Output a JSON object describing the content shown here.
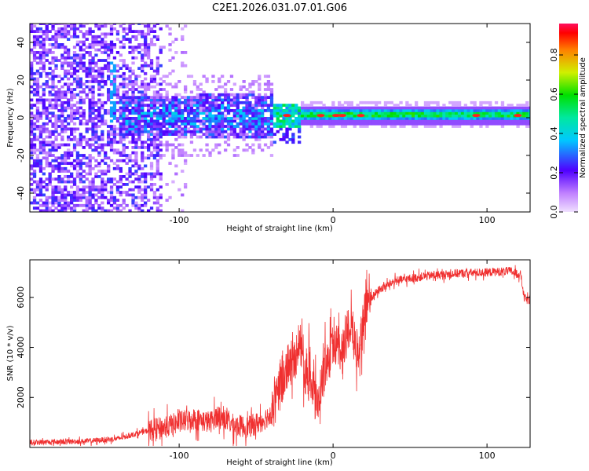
{
  "title": "C2E1.2026.031.07.01.G06",
  "chart_data": [
    {
      "type": "heatmap",
      "name": "spectrogram",
      "xlabel": "Height of straight line (km)",
      "ylabel": "Frequency (Hz)",
      "xlim": [
        -197,
        128
      ],
      "ylim": [
        -50,
        50
      ],
      "xticks": [
        -100,
        0,
        100
      ],
      "yticks": [
        -40,
        -20,
        0,
        20,
        40
      ],
      "colorbar": {
        "label": "Normalized spectral amplitude",
        "range": [
          0,
          0.96
        ],
        "ticks": [
          0.0,
          0.2,
          0.4,
          0.6,
          0.8
        ]
      },
      "regions": [
        {
          "x_range": [
            -197,
            -112
          ],
          "freq_range": [
            -50,
            50
          ],
          "amplitude": "0.05-0.25",
          "description": "broad noise"
        },
        {
          "x_range": [
            -140,
            -40
          ],
          "freq_range": [
            -12,
            14
          ],
          "amplitude": "0.2-0.5",
          "description": "diffuse signal"
        },
        {
          "x_range": [
            -40,
            128
          ],
          "freq_range": [
            -1,
            4
          ],
          "amplitude": "0.4-0.96",
          "description": "narrow tone near 1 Hz"
        }
      ],
      "hotspots_x": [
        -30,
        -8,
        2,
        6,
        18,
        93,
        120
      ]
    },
    {
      "type": "line",
      "name": "snr",
      "xlabel": "Height of straight line (km)",
      "ylabel": "SNR (10 * v/v)",
      "xlim": [
        -197,
        128
      ],
      "ylim": [
        0,
        7500
      ],
      "xticks": [
        -100,
        0,
        100
      ],
      "yticks": [
        2000,
        4000,
        6000
      ],
      "color": "#f03030",
      "series_points": [
        [
          -197,
          200
        ],
        [
          -180,
          220
        ],
        [
          -160,
          250
        ],
        [
          -140,
          350
        ],
        [
          -125,
          600
        ],
        [
          -110,
          800
        ],
        [
          -100,
          1000
        ],
        [
          -90,
          1150
        ],
        [
          -80,
          1000
        ],
        [
          -75,
          1300
        ],
        [
          -65,
          900
        ],
        [
          -55,
          800
        ],
        [
          -45,
          1100
        ],
        [
          -40,
          1400
        ],
        [
          -35,
          2200
        ],
        [
          -30,
          3200
        ],
        [
          -25,
          3500
        ],
        [
          -22,
          4300
        ],
        [
          -18,
          3000
        ],
        [
          -14,
          2500
        ],
        [
          -10,
          1600
        ],
        [
          -5,
          3300
        ],
        [
          -2,
          3700
        ],
        [
          2,
          4200
        ],
        [
          5,
          3800
        ],
        [
          9,
          4600
        ],
        [
          12,
          4900
        ],
        [
          15,
          3800
        ],
        [
          18,
          4400
        ],
        [
          22,
          5800
        ],
        [
          25,
          6000
        ],
        [
          30,
          6300
        ],
        [
          40,
          6650
        ],
        [
          60,
          6850
        ],
        [
          80,
          6950
        ],
        [
          100,
          7000
        ],
        [
          115,
          7050
        ],
        [
          122,
          6900
        ],
        [
          124,
          6000
        ],
        [
          128,
          5800
        ]
      ]
    }
  ]
}
